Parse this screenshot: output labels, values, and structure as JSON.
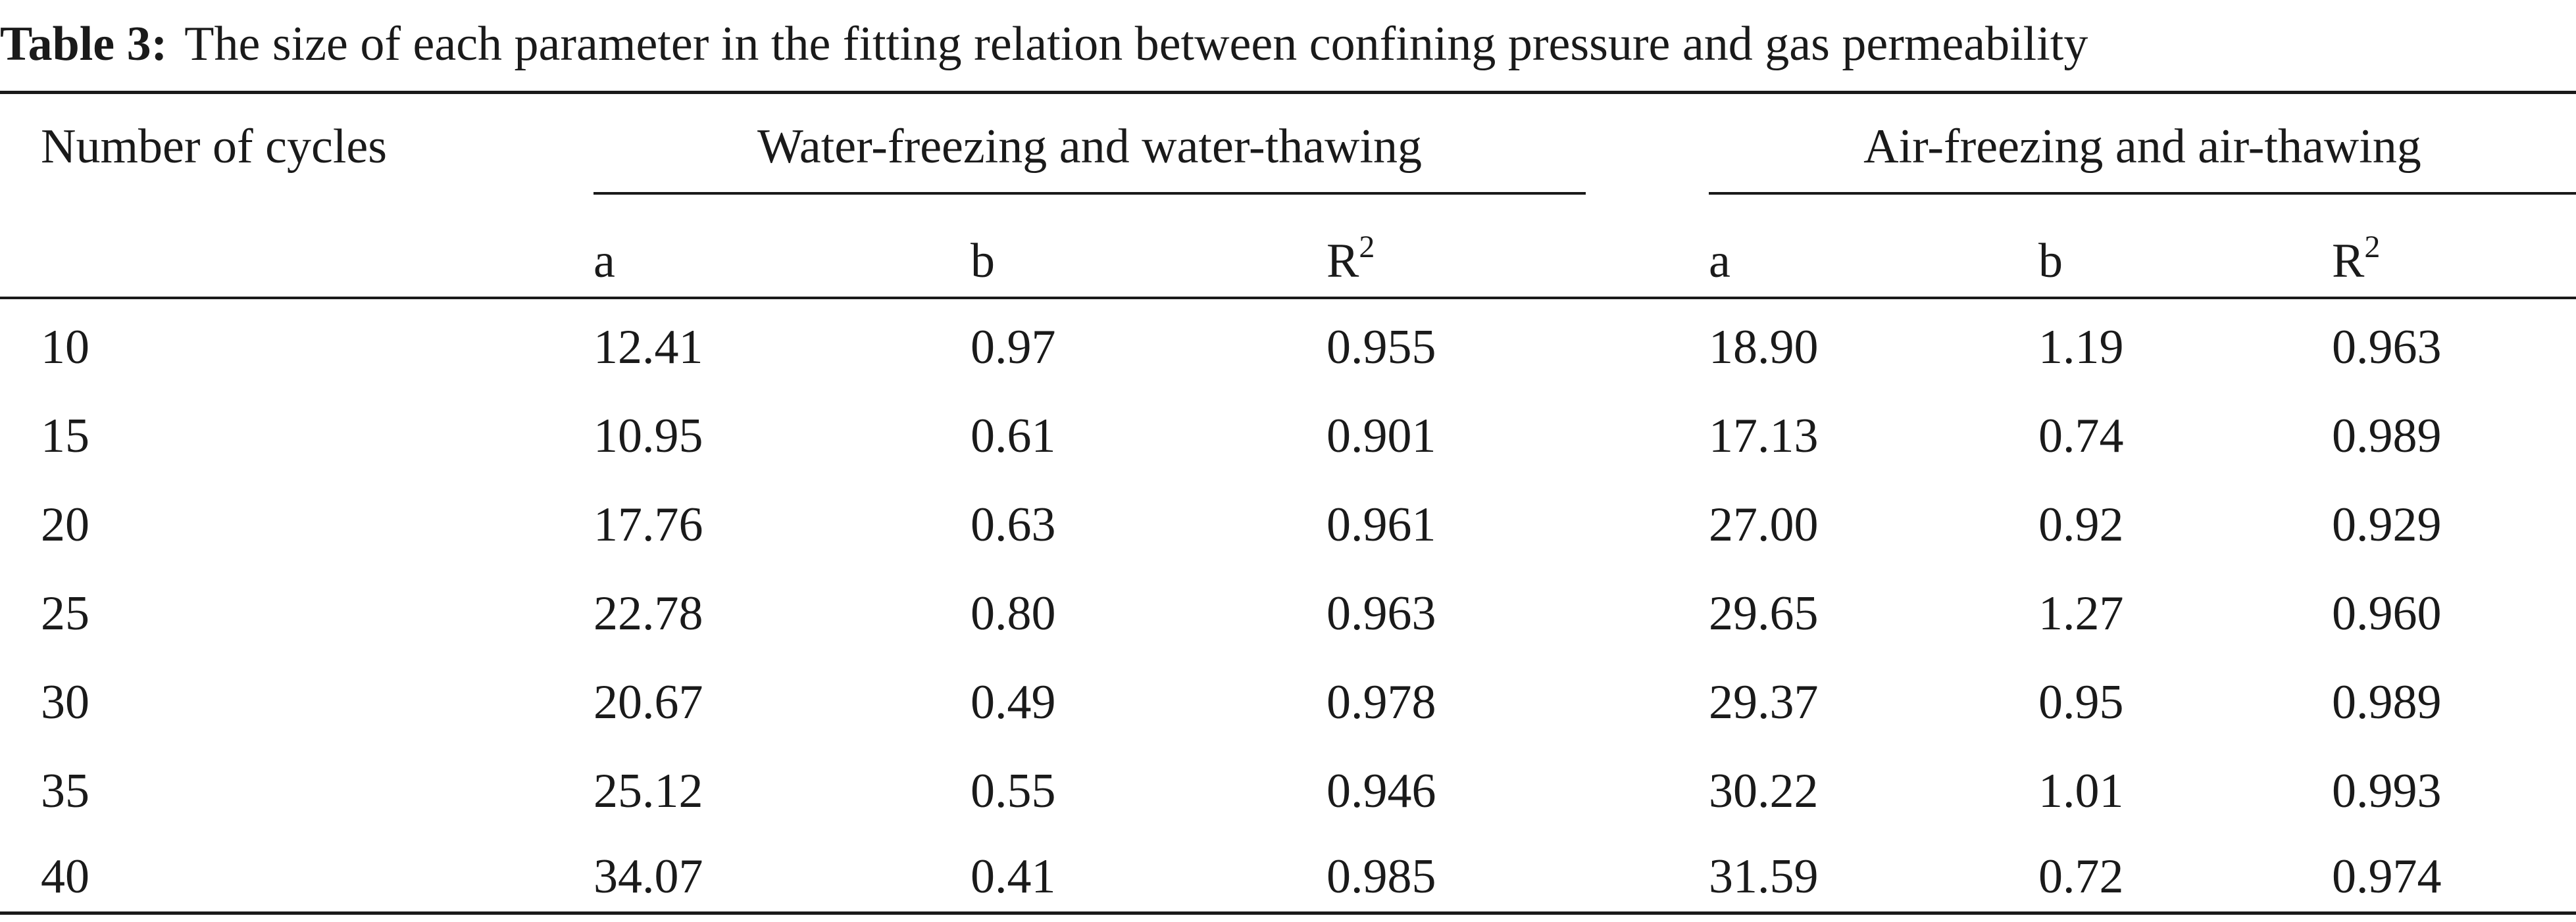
{
  "table": {
    "caption_label": "Table 3:",
    "caption_text": "The size of each parameter in the fitting relation between confining pressure and gas permeability",
    "first_col_header": "Number of cycles",
    "groups": [
      {
        "label": "Water-freezing and water-thawing"
      },
      {
        "label": "Air-freezing and air-thawing"
      }
    ],
    "sub_headers": {
      "a": "a",
      "b": "b",
      "r_base": "R",
      "r_sup": "2"
    },
    "rows": [
      {
        "cycles": "10",
        "w_a": "12.41",
        "w_b": "0.97",
        "w_r2": "0.955",
        "a_a": "18.90",
        "a_b": "1.19",
        "a_r2": "0.963"
      },
      {
        "cycles": "15",
        "w_a": "10.95",
        "w_b": "0.61",
        "w_r2": "0.901",
        "a_a": "17.13",
        "a_b": "0.74",
        "a_r2": "0.989"
      },
      {
        "cycles": "20",
        "w_a": "17.76",
        "w_b": "0.63",
        "w_r2": "0.961",
        "a_a": "27.00",
        "a_b": "0.92",
        "a_r2": "0.929"
      },
      {
        "cycles": "25",
        "w_a": "22.78",
        "w_b": "0.80",
        "w_r2": "0.963",
        "a_a": "29.65",
        "a_b": "1.27",
        "a_r2": "0.960"
      },
      {
        "cycles": "30",
        "w_a": "20.67",
        "w_b": "0.49",
        "w_r2": "0.978",
        "a_a": "29.37",
        "a_b": "0.95",
        "a_r2": "0.989"
      },
      {
        "cycles": "35",
        "w_a": "25.12",
        "w_b": "0.55",
        "w_r2": "0.946",
        "a_a": "30.22",
        "a_b": "1.01",
        "a_r2": "0.993"
      },
      {
        "cycles": "40",
        "w_a": "34.07",
        "w_b": "0.41",
        "w_r2": "0.985",
        "a_a": "31.59",
        "a_b": "0.72",
        "a_r2": "0.974"
      }
    ]
  }
}
